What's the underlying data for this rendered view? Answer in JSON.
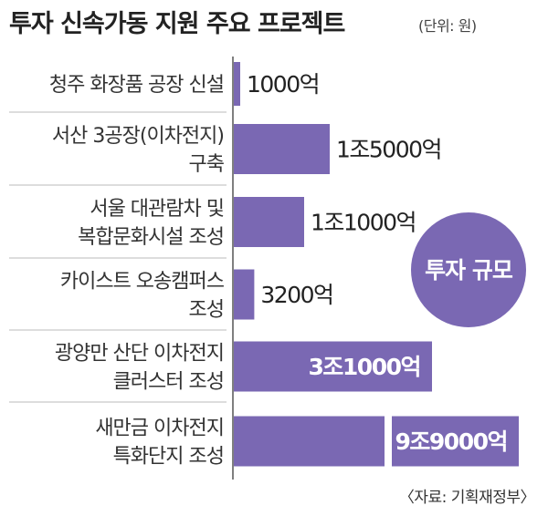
{
  "header": {
    "title": "투자 신속가동 지원 주요 프로젝트",
    "unit": "(단위: 원)"
  },
  "source": "〈자료: 기획재정부〉",
  "badge": {
    "label": "투자 규모",
    "color": "#7a68b3"
  },
  "colors": {
    "bar": "#7a68b3",
    "divider": "#bbbbbb",
    "axis": "#555555",
    "label": "#333333"
  },
  "chart_data": {
    "type": "bar",
    "orientation": "horizontal",
    "categories": [
      [
        "청주 화장품 공장 신설"
      ],
      [
        "서산 3공장(이차전지)",
        "구축"
      ],
      [
        "서울 대관람차 및",
        "복합문화시설 조성"
      ],
      [
        "카이스트 오송캠퍼스",
        "조성"
      ],
      [
        "광양만 산단 이차전지",
        "클러스터 조성"
      ],
      [
        "새만금 이차전지",
        "특화단지 조성"
      ]
    ],
    "values": [
      1000,
      15000,
      11000,
      3200,
      31000,
      99000
    ],
    "value_unit": "억원",
    "data_labels": [
      "1000억",
      "1조5000억",
      "1조1000억",
      "3200억",
      "3조1000억",
      "9조9000억"
    ],
    "axis_break_on_last": true
  }
}
